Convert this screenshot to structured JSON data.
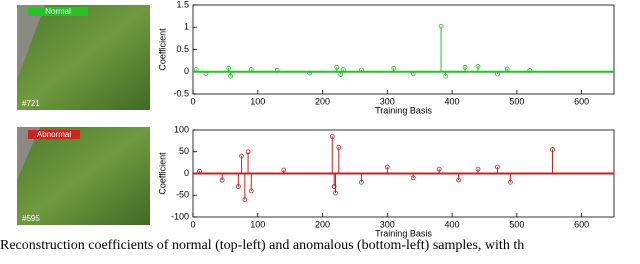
{
  "images": [
    {
      "label": "Normal",
      "frame": "#721"
    },
    {
      "label": "Abnormal",
      "frame": "#595"
    }
  ],
  "caption": "Reconstruction coefficients of normal (top-left) and anomalous (bottom-left) samples, with th",
  "chart_data": [
    {
      "type": "stem",
      "xlabel": "Training Basis",
      "ylabel": "Coefficient",
      "color": "#22c422",
      "x": [
        5,
        20,
        55,
        58,
        90,
        130,
        180,
        222,
        228,
        232,
        260,
        310,
        340,
        383,
        390,
        420,
        440,
        470,
        485,
        520
      ],
      "values": [
        0.05,
        -0.04,
        0.08,
        -0.1,
        0.05,
        0.03,
        -0.03,
        0.1,
        -0.06,
        0.05,
        0.04,
        0.08,
        -0.04,
        1.02,
        -0.1,
        0.1,
        0.12,
        -0.05,
        0.06,
        0.03
      ],
      "xlim": [
        0,
        650
      ],
      "ylim": [
        -0.5,
        1.5
      ],
      "xticks": [
        0,
        100,
        200,
        300,
        400,
        500,
        600
      ],
      "yticks": [
        -0.5,
        0,
        0.5,
        1,
        1.5
      ]
    },
    {
      "type": "stem",
      "xlabel": "Training Basis",
      "ylabel": "Coefficient",
      "color": "#c42222",
      "x": [
        10,
        45,
        70,
        75,
        80,
        85,
        90,
        140,
        215,
        218,
        220,
        225,
        260,
        300,
        340,
        380,
        410,
        440,
        470,
        490,
        555
      ],
      "values": [
        5,
        -15,
        -30,
        40,
        -60,
        50,
        -40,
        8,
        85,
        -30,
        -45,
        60,
        -20,
        15,
        -10,
        10,
        -15,
        10,
        15,
        -20,
        55
      ],
      "xlim": [
        0,
        650
      ],
      "ylim": [
        -100,
        100
      ],
      "xticks": [
        0,
        100,
        200,
        300,
        400,
        500,
        600
      ],
      "yticks": [
        -100,
        -50,
        0,
        50,
        100
      ]
    }
  ]
}
